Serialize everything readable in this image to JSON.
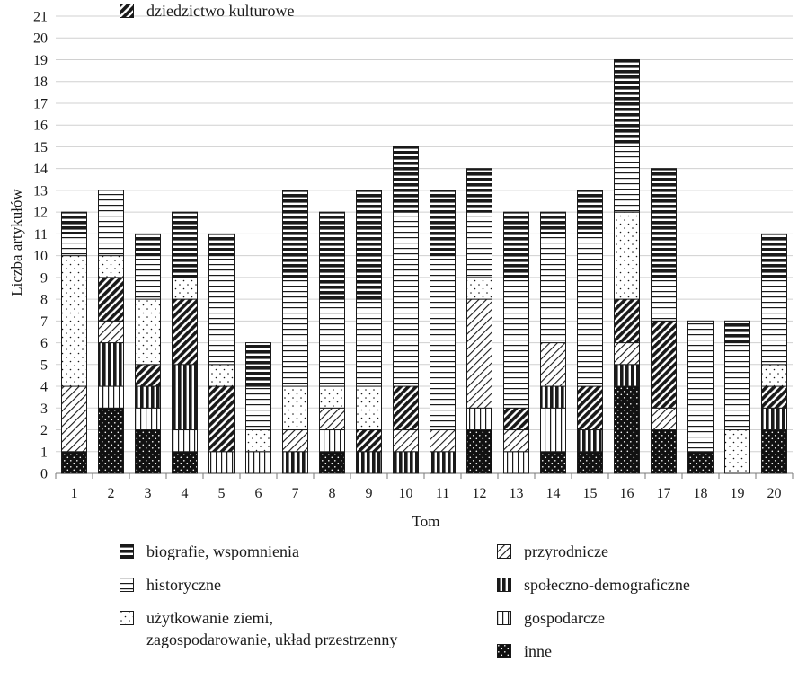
{
  "chart_data": {
    "type": "bar",
    "stacked": true,
    "title": "",
    "xlabel": "Tom",
    "ylabel": "Liczba artykułów",
    "ylim": [
      0,
      21
    ],
    "yticks": [
      0,
      1,
      2,
      3,
      4,
      5,
      6,
      7,
      8,
      9,
      10,
      11,
      12,
      13,
      14,
      15,
      16,
      17,
      18,
      19,
      20,
      21
    ],
    "grid": "horizontal",
    "legend_position": "bottom",
    "categories": [
      "1",
      "2",
      "3",
      "4",
      "5",
      "6",
      "7",
      "8",
      "9",
      "10",
      "11",
      "12",
      "13",
      "14",
      "15",
      "16",
      "17",
      "18",
      "19",
      "20"
    ],
    "series": [
      {
        "name": "inne",
        "pattern": "dots-dark",
        "values": [
          1,
          3,
          2,
          1,
          0,
          0,
          0,
          1,
          0,
          0,
          0,
          2,
          0,
          1,
          1,
          4,
          2,
          1,
          0,
          2
        ]
      },
      {
        "name": "gospodarcze",
        "pattern": "vertical-light",
        "values": [
          0,
          1,
          1,
          1,
          1,
          1,
          0,
          1,
          0,
          0,
          0,
          1,
          1,
          2,
          0,
          0,
          0,
          0,
          0,
          0
        ]
      },
      {
        "name": "społeczno-demograficzne",
        "pattern": "vertical-dark",
        "values": [
          0,
          2,
          1,
          3,
          0,
          0,
          1,
          0,
          1,
          1,
          1,
          0,
          0,
          1,
          1,
          1,
          0,
          0,
          0,
          1
        ]
      },
      {
        "name": "przyrodnicze",
        "pattern": "diagonal-light",
        "values": [
          3,
          1,
          0,
          0,
          0,
          0,
          1,
          1,
          0,
          1,
          1,
          5,
          1,
          2,
          0,
          1,
          1,
          0,
          0,
          0
        ]
      },
      {
        "name": "dziedzictwo kulturowe",
        "pattern": "diagonal-dark",
        "values": [
          0,
          2,
          1,
          3,
          3,
          0,
          0,
          0,
          1,
          2,
          0,
          0,
          1,
          0,
          2,
          2,
          4,
          0,
          0,
          1
        ]
      },
      {
        "name": "użytkowanie ziemi,\nzagospodarowanie, układ przestrzenny",
        "pattern": "dots-light",
        "values": [
          6,
          1,
          3,
          1,
          1,
          1,
          2,
          1,
          2,
          0,
          0,
          1,
          0,
          0,
          0,
          4,
          0,
          0,
          2,
          1
        ]
      },
      {
        "name": "historyczne",
        "pattern": "horizontal-light",
        "values": [
          1,
          3,
          2,
          0,
          5,
          2,
          5,
          4,
          4,
          8,
          8,
          3,
          6,
          5,
          7,
          3,
          2,
          6,
          4,
          4
        ]
      },
      {
        "name": "biografie, wspomnienia",
        "pattern": "horizontal-dark",
        "values": [
          1,
          0,
          1,
          3,
          1,
          2,
          4,
          4,
          5,
          3,
          3,
          2,
          3,
          1,
          2,
          4,
          5,
          0,
          1,
          2
        ]
      }
    ],
    "legend_order": [
      {
        "series": 7,
        "column": 0,
        "row": 0
      },
      {
        "series": 6,
        "column": 0,
        "row": 1
      },
      {
        "series": 5,
        "column": 0,
        "row": 2
      },
      {
        "series": 4,
        "column": 0,
        "row": 4
      },
      {
        "series": 3,
        "column": 1,
        "row": 0
      },
      {
        "series": 2,
        "column": 1,
        "row": 1
      },
      {
        "series": 1,
        "column": 1,
        "row": 2
      },
      {
        "series": 0,
        "column": 1,
        "row": 3
      }
    ],
    "colors": {
      "ink": "#1a1a1a",
      "grid": "#d0d0d0",
      "axis": "#7a7a7a"
    }
  }
}
